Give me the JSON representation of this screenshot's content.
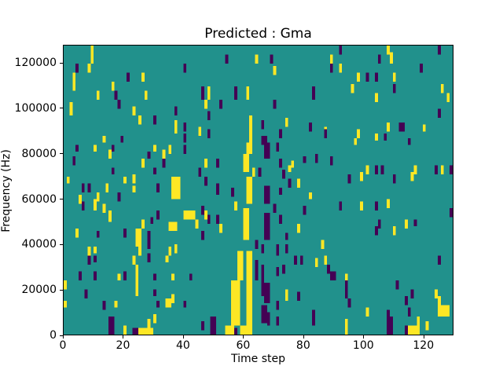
{
  "figure": {
    "title": "Predicted : Gma",
    "xlabel": "Time step",
    "ylabel": "Frequency (Hz)"
  },
  "chart_data": {
    "type": "heatmap",
    "title": "Predicted : Gma",
    "xlabel": "Time step",
    "ylabel": "Frequency (Hz)",
    "xlim": [
      0,
      130
    ],
    "ylim": [
      0,
      128000
    ],
    "x_ticks": [
      0,
      20,
      40,
      60,
      80,
      100,
      120
    ],
    "y_ticks": [
      0,
      20000,
      40000,
      60000,
      80000,
      100000,
      120000
    ],
    "grid": false,
    "legend": "none",
    "background_color": "#21918c",
    "cell_colors": {
      "y": "#fde725",
      "p": "#440154"
    },
    "cell_format": "[time_step, freq_kHz_bottom, color_code, height_kHz(default 4), width_steps(default 1)]",
    "cells": [
      [
        9,
        120,
        "y",
        8
      ],
      [
        4,
        116,
        "p"
      ],
      [
        8,
        116,
        "y"
      ],
      [
        3,
        108,
        "y",
        8
      ],
      [
        40,
        116,
        "p"
      ],
      [
        21,
        112,
        "p"
      ],
      [
        26,
        112,
        "y"
      ],
      [
        16,
        108,
        "y"
      ],
      [
        11,
        104,
        "y"
      ],
      [
        17,
        104,
        "p"
      ],
      [
        18,
        100,
        "p"
      ],
      [
        27,
        104,
        "y"
      ],
      [
        2,
        97,
        "y",
        6
      ],
      [
        23,
        97,
        "y",
        4
      ],
      [
        25,
        93,
        "y"
      ],
      [
        30,
        93,
        "p"
      ],
      [
        37,
        97,
        "p"
      ],
      [
        37,
        89,
        "y",
        6
      ],
      [
        40,
        90,
        "p"
      ],
      [
        40,
        85,
        "p"
      ],
      [
        13,
        85,
        "y",
        3
      ],
      [
        19,
        85,
        "p",
        3
      ],
      [
        54,
        120,
        "p"
      ],
      [
        64,
        120,
        "y"
      ],
      [
        69,
        120,
        "p"
      ],
      [
        70,
        115,
        "y"
      ],
      [
        46,
        104,
        "p",
        6
      ],
      [
        48,
        104,
        "y",
        6
      ],
      [
        47,
        100,
        "y"
      ],
      [
        52,
        100,
        "p"
      ],
      [
        57,
        104,
        "p",
        6
      ],
      [
        61,
        104,
        "y",
        6
      ],
      [
        48,
        95,
        "p"
      ],
      [
        70,
        100,
        "p"
      ],
      [
        83,
        104,
        "p",
        6
      ],
      [
        62,
        85,
        "y",
        12
      ],
      [
        66,
        91,
        "p"
      ],
      [
        74,
        92,
        "y"
      ],
      [
        82,
        90,
        "p"
      ],
      [
        72,
        87,
        "p"
      ],
      [
        45,
        88,
        "y"
      ],
      [
        48,
        87,
        "p"
      ],
      [
        66,
        84,
        "p",
        4,
        2
      ],
      [
        87,
        88,
        "y"
      ],
      [
        92,
        124,
        "p"
      ],
      [
        108,
        124,
        "y"
      ],
      [
        125,
        124,
        "p"
      ],
      [
        89,
        120,
        "y"
      ],
      [
        105,
        120,
        "p"
      ],
      [
        109,
        120,
        "y",
        5
      ],
      [
        89,
        116,
        "p"
      ],
      [
        92,
        116,
        "y"
      ],
      [
        119,
        116,
        "p"
      ],
      [
        98,
        112,
        "y"
      ],
      [
        101,
        112,
        "p"
      ],
      [
        104,
        112,
        "p"
      ],
      [
        110,
        112,
        "y"
      ],
      [
        96,
        107,
        "y"
      ],
      [
        110,
        107,
        "p"
      ],
      [
        126,
        107,
        "y"
      ],
      [
        104,
        103,
        "y"
      ],
      [
        128,
        103,
        "y"
      ],
      [
        125,
        96,
        "p"
      ],
      [
        108,
        90,
        "y"
      ],
      [
        112,
        90,
        "p",
        4,
        2
      ],
      [
        120,
        90,
        "y",
        3
      ],
      [
        87,
        87,
        "p"
      ],
      [
        98,
        87,
        "y"
      ],
      [
        104,
        86,
        "y",
        3
      ],
      [
        107,
        86,
        "p",
        3
      ],
      [
        115,
        84,
        "p",
        3
      ],
      [
        97,
        84,
        "y",
        3
      ],
      [
        4,
        81,
        "p",
        3
      ],
      [
        10,
        81,
        "y",
        3
      ],
      [
        16,
        81,
        "p",
        3
      ],
      [
        30,
        81,
        "y",
        3
      ],
      [
        15,
        78,
        "y"
      ],
      [
        3,
        75,
        "p",
        4
      ],
      [
        33,
        78,
        "y"
      ],
      [
        28,
        78,
        "p",
        3
      ],
      [
        33,
        74,
        "p"
      ],
      [
        26,
        74,
        "y"
      ],
      [
        30,
        71,
        "p",
        3
      ],
      [
        16,
        71,
        "p",
        3
      ],
      [
        1,
        67,
        "y",
        3
      ],
      [
        23,
        67,
        "y",
        4
      ],
      [
        6,
        63,
        "p"
      ],
      [
        8,
        63,
        "p"
      ],
      [
        14,
        63,
        "y"
      ],
      [
        20,
        67,
        "y",
        3
      ],
      [
        23,
        63,
        "y",
        3
      ],
      [
        31,
        63,
        "p"
      ],
      [
        36,
        60,
        "y",
        10,
        3
      ],
      [
        35,
        46,
        "y",
        4,
        3
      ],
      [
        40,
        51,
        "y",
        4,
        4
      ],
      [
        11,
        59,
        "y"
      ],
      [
        5,
        58,
        "y"
      ],
      [
        6,
        55,
        "p"
      ],
      [
        10,
        55,
        "y",
        5
      ],
      [
        18,
        59,
        "p"
      ],
      [
        13,
        54,
        "y"
      ],
      [
        31,
        51,
        "p"
      ],
      [
        29,
        49,
        "p",
        3
      ],
      [
        15,
        50,
        "y",
        5
      ],
      [
        26,
        47,
        "y",
        4
      ],
      [
        4,
        43,
        "y"
      ],
      [
        11,
        43,
        "p",
        3
      ],
      [
        20,
        43,
        "p",
        4
      ],
      [
        24,
        42,
        "y",
        5,
        2
      ],
      [
        28,
        42,
        "p",
        4
      ],
      [
        35,
        80,
        "y",
        4
      ],
      [
        40,
        80,
        "p",
        4
      ],
      [
        60,
        72,
        "y",
        8,
        2
      ],
      [
        61,
        80,
        "y",
        5,
        2
      ],
      [
        61,
        58,
        "y",
        12,
        2
      ],
      [
        60,
        42,
        "y",
        14,
        2
      ],
      [
        57,
        55,
        "y",
        4
      ],
      [
        63,
        70,
        "y",
        4
      ],
      [
        67,
        78,
        "p",
        7,
        2
      ],
      [
        67,
        58,
        "p",
        8,
        2
      ],
      [
        70,
        54,
        "p",
        4
      ],
      [
        67,
        42,
        "p",
        12,
        2
      ],
      [
        71,
        81,
        "p",
        4
      ],
      [
        72,
        74,
        "p"
      ],
      [
        76,
        74,
        "y",
        3
      ],
      [
        80,
        76,
        "p",
        3
      ],
      [
        84,
        76,
        "p",
        4
      ],
      [
        47,
        74,
        "y"
      ],
      [
        51,
        74,
        "p"
      ],
      [
        45,
        70,
        "p"
      ],
      [
        47,
        66,
        "p"
      ],
      [
        51,
        62,
        "p",
        5
      ],
      [
        56,
        61,
        "p",
        4
      ],
      [
        65,
        70,
        "p",
        4
      ],
      [
        73,
        69,
        "p"
      ],
      [
        75,
        72,
        "y",
        3
      ],
      [
        75,
        65,
        "p"
      ],
      [
        78,
        65,
        "y"
      ],
      [
        72,
        62,
        "p",
        3
      ],
      [
        82,
        60,
        "y",
        3
      ],
      [
        80,
        53,
        "p"
      ],
      [
        72,
        49,
        "p"
      ],
      [
        78,
        45,
        "y"
      ],
      [
        74,
        42,
        "p",
        3
      ],
      [
        46,
        53,
        "p"
      ],
      [
        47,
        51,
        "y"
      ],
      [
        48,
        49,
        "p"
      ],
      [
        44,
        47,
        "y"
      ],
      [
        51,
        49,
        "p"
      ],
      [
        52,
        45,
        "y"
      ],
      [
        46,
        42,
        "p"
      ],
      [
        89,
        75,
        "p"
      ],
      [
        95,
        67,
        "p"
      ],
      [
        99,
        68,
        "y"
      ],
      [
        101,
        71,
        "y"
      ],
      [
        104,
        71,
        "p"
      ],
      [
        106,
        71,
        "p"
      ],
      [
        110,
        67,
        "p"
      ],
      [
        117,
        71,
        "y"
      ],
      [
        116,
        68,
        "y"
      ],
      [
        124,
        71,
        "p"
      ],
      [
        126,
        71,
        "y"
      ],
      [
        129,
        71,
        "p"
      ],
      [
        92,
        55,
        "p"
      ],
      [
        99,
        55,
        "y"
      ],
      [
        104,
        55,
        "p"
      ],
      [
        108,
        56,
        "y"
      ],
      [
        129,
        52,
        "p"
      ],
      [
        105,
        47,
        "p"
      ],
      [
        104,
        44,
        "p"
      ],
      [
        114,
        47,
        "y"
      ],
      [
        117,
        48,
        "p",
        3
      ],
      [
        110,
        44,
        "y"
      ],
      [
        24,
        39,
        "y",
        3,
        2
      ],
      [
        28,
        38,
        "p",
        4
      ],
      [
        8,
        35,
        "y"
      ],
      [
        10,
        36,
        "y",
        3
      ],
      [
        8,
        31,
        "p"
      ],
      [
        10,
        32,
        "p",
        3
      ],
      [
        23,
        31,
        "y"
      ],
      [
        25,
        35,
        "y"
      ],
      [
        28,
        32,
        "p"
      ],
      [
        34,
        32,
        "y",
        3
      ],
      [
        35,
        35,
        "y"
      ],
      [
        37,
        36,
        "y",
        4
      ],
      [
        5,
        24,
        "p"
      ],
      [
        10,
        24,
        "p"
      ],
      [
        18,
        24,
        "y",
        3
      ],
      [
        20,
        24,
        "p"
      ],
      [
        24,
        17,
        "y",
        14
      ],
      [
        30,
        24,
        "p",
        3
      ],
      [
        36,
        24,
        "y",
        3
      ],
      [
        42,
        24,
        "p",
        3
      ],
      [
        0,
        20,
        "y",
        4
      ],
      [
        7,
        16,
        "p"
      ],
      [
        30,
        17,
        "p",
        3
      ],
      [
        0,
        12,
        "y",
        3
      ],
      [
        13,
        11,
        "p",
        4
      ],
      [
        17,
        12,
        "y",
        3
      ],
      [
        36,
        14,
        "y",
        4
      ],
      [
        34,
        12,
        "y",
        4,
        2
      ],
      [
        31,
        12,
        "p",
        3
      ],
      [
        40,
        12,
        "p",
        3
      ],
      [
        15,
        0,
        "p",
        8,
        2
      ],
      [
        20,
        0,
        "y",
        4
      ],
      [
        23,
        0,
        "p",
        3,
        2
      ],
      [
        25,
        0,
        "y",
        3,
        5
      ],
      [
        28,
        3,
        "y",
        4
      ],
      [
        30,
        5,
        "y",
        4
      ],
      [
        56,
        4,
        "y",
        20,
        3
      ],
      [
        58,
        24,
        "y",
        13,
        2
      ],
      [
        61,
        0,
        "y",
        37,
        2
      ],
      [
        59,
        0,
        "y",
        4,
        3
      ],
      [
        57,
        0,
        "p",
        3
      ],
      [
        64,
        24,
        "p",
        9
      ],
      [
        64,
        38,
        "p",
        4
      ],
      [
        66,
        36,
        "p",
        4
      ],
      [
        66,
        17,
        "p",
        14
      ],
      [
        67,
        14,
        "p",
        9,
        2
      ],
      [
        68,
        4,
        "p",
        6
      ],
      [
        71,
        35,
        "p",
        5
      ],
      [
        74,
        36,
        "p",
        4
      ],
      [
        77,
        31,
        "p",
        4
      ],
      [
        79,
        31,
        "p",
        4
      ],
      [
        84,
        30,
        "y",
        4
      ],
      [
        87,
        31,
        "y",
        4
      ],
      [
        73,
        27,
        "p",
        4
      ],
      [
        71,
        26,
        "p",
        4
      ],
      [
        74,
        15,
        "y",
        5
      ],
      [
        78,
        15,
        "p",
        4
      ],
      [
        71,
        11,
        "p",
        4
      ],
      [
        66,
        5,
        "p",
        8,
        2
      ],
      [
        71,
        4,
        "p",
        4
      ],
      [
        83,
        4,
        "p",
        7
      ],
      [
        46,
        2,
        "p",
        4
      ],
      [
        49,
        0,
        "p",
        8,
        2
      ],
      [
        54,
        0,
        "y",
        4,
        3
      ],
      [
        86,
        38,
        "y",
        4
      ],
      [
        125,
        31,
        "p"
      ],
      [
        88,
        27,
        "p"
      ],
      [
        89,
        24,
        "p",
        4,
        2
      ],
      [
        94,
        24,
        "y",
        3
      ],
      [
        94,
        20,
        "p"
      ],
      [
        111,
        20,
        "p"
      ],
      [
        94,
        16,
        "p",
        4
      ],
      [
        95,
        12,
        "p",
        4
      ],
      [
        114,
        13,
        "p"
      ],
      [
        116,
        16,
        "p"
      ],
      [
        115,
        8,
        "p"
      ],
      [
        124,
        16,
        "y"
      ],
      [
        125,
        13,
        "y"
      ],
      [
        125,
        8,
        "y",
        5,
        4
      ],
      [
        101,
        8,
        "y"
      ],
      [
        108,
        7,
        "p"
      ],
      [
        108,
        0,
        "p",
        8,
        2
      ],
      [
        114,
        0,
        "p",
        4
      ],
      [
        115,
        0,
        "y",
        4,
        4
      ],
      [
        118,
        4,
        "y",
        4
      ],
      [
        121,
        2,
        "y",
        4
      ],
      [
        94,
        3,
        "y"
      ],
      [
        94,
        0,
        "y",
        3
      ]
    ]
  }
}
